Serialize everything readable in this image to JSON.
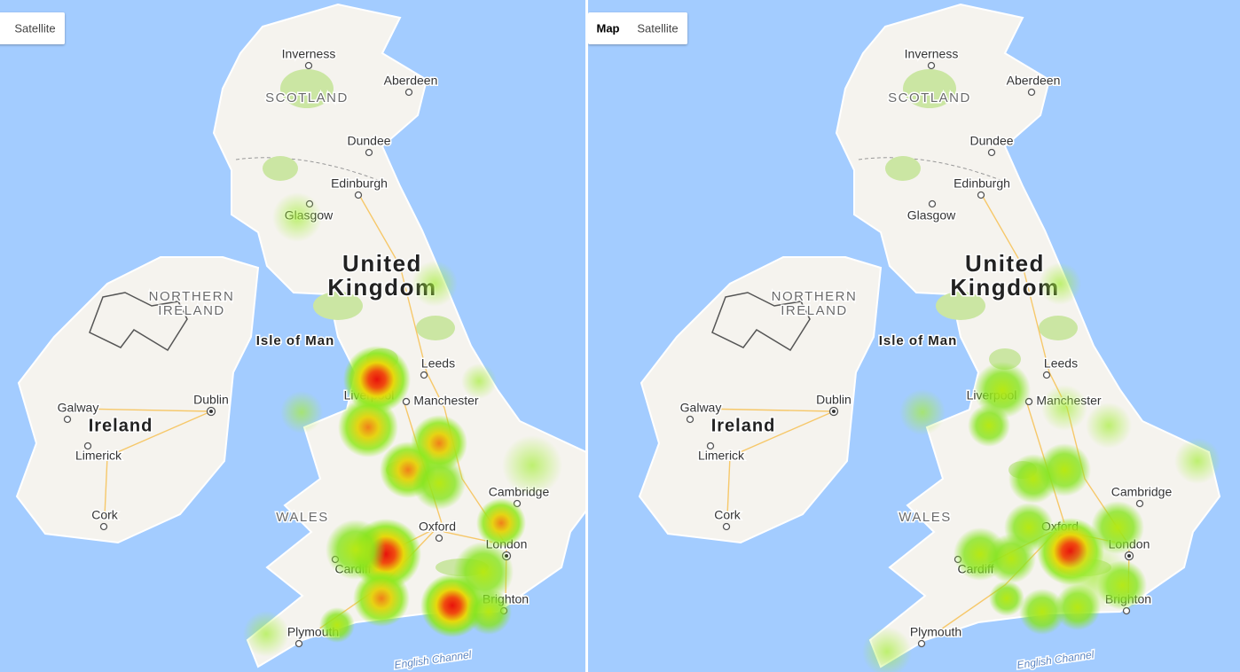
{
  "panels": [
    {
      "buttons": [
        "Satellite"
      ],
      "places": [
        "Inverness",
        "Aberdeen",
        "SCOTLAND",
        "Dundee",
        "Edinburgh",
        "Glasgow",
        "United",
        "Kingdom",
        "NORTHERN",
        "IRELAND",
        "Isle of Man",
        "Leeds",
        "Liverpool",
        "Manchester",
        "Galway",
        "Dublin",
        "Ireland",
        "Limerick",
        "Cork",
        "WALES",
        "Cambridge",
        "Oxford",
        "London",
        "Cardiff",
        "Brighton",
        "Plymouth",
        "English Channel"
      ]
    },
    {
      "buttons": [
        "Map",
        "Satellite"
      ],
      "places": [
        "Inverness",
        "Aberdeen",
        "SCOTLAND",
        "Dundee",
        "Edinburgh",
        "Glasgow",
        "United",
        "Kingdom",
        "NORTHERN",
        "IRELAND",
        "Isle of Man",
        "Leeds",
        "Liverpool",
        "Manchester",
        "Galway",
        "Dublin",
        "Ireland",
        "Limerick",
        "Cork",
        "WALES",
        "Cambridge",
        "Oxford",
        "London",
        "Cardiff",
        "Brighton",
        "Plymouth",
        "English Channel"
      ]
    }
  ]
}
